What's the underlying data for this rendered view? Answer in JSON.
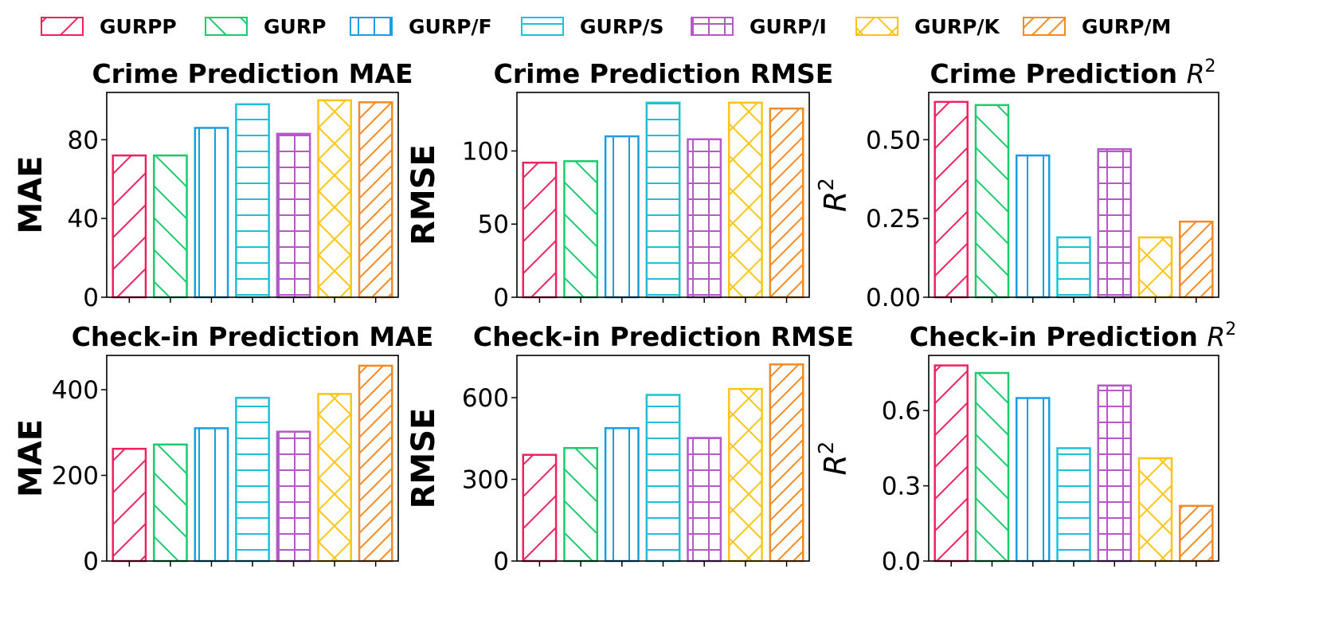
{
  "legend": [
    {
      "label": "GURPP",
      "color": "#f0215e",
      "hatch": "diag-forward"
    },
    {
      "label": "GURP",
      "color": "#1ccb6d",
      "hatch": "diag-back"
    },
    {
      "label": "GURP/F",
      "color": "#1a9ee0",
      "hatch": "vertical"
    },
    {
      "label": "GURP/S",
      "color": "#1ec0d8",
      "hatch": "horizontal"
    },
    {
      "label": "GURP/I",
      "color": "#b559c9",
      "hatch": "grid"
    },
    {
      "label": "GURP/K",
      "color": "#fcc417",
      "hatch": "cross-diag"
    },
    {
      "label": "GURP/M",
      "color": "#f28a26",
      "hatch": "diag-forward-dense"
    }
  ],
  "chart_data": [
    {
      "type": "bar",
      "title": "Crime Prediction MAE",
      "ylabel": "MAE",
      "categories": [
        "GURPP",
        "GURP",
        "GURP/F",
        "GURP/S",
        "GURP/I",
        "GURP/K",
        "GURP/M"
      ],
      "values": [
        72,
        72,
        86,
        98,
        83,
        100,
        99
      ],
      "ylim": [
        0,
        104
      ],
      "yticks": [
        0,
        40,
        80
      ],
      "ytick_labels": [
        "0",
        "40",
        "80"
      ]
    },
    {
      "type": "bar",
      "title": "Crime Prediction RMSE",
      "ylabel": "RMSE",
      "categories": [
        "GURPP",
        "GURP",
        "GURP/F",
        "GURP/S",
        "GURP/I",
        "GURP/K",
        "GURP/M"
      ],
      "values": [
        92,
        93,
        110,
        133,
        108,
        133,
        129
      ],
      "ylim": [
        0,
        140
      ],
      "yticks": [
        0,
        50,
        100
      ],
      "ytick_labels": [
        "0",
        "50",
        "100"
      ]
    },
    {
      "type": "bar",
      "title": "Crime Prediction R^2",
      "ylabel": "R^2",
      "categories": [
        "GURPP",
        "GURP",
        "GURP/F",
        "GURP/S",
        "GURP/I",
        "GURP/K",
        "GURP/M"
      ],
      "values": [
        0.62,
        0.61,
        0.45,
        0.19,
        0.47,
        0.19,
        0.24
      ],
      "ylim": [
        0,
        0.65
      ],
      "yticks": [
        0,
        0.25,
        0.5
      ],
      "ytick_labels": [
        "0.00",
        "0.25",
        "0.50"
      ]
    },
    {
      "type": "bar",
      "title": "Check-in Prediction MAE",
      "ylabel": "MAE",
      "categories": [
        "GURPP",
        "GURP",
        "GURP/F",
        "GURP/S",
        "GURP/I",
        "GURP/K",
        "GURP/M"
      ],
      "values": [
        262,
        272,
        310,
        381,
        302,
        390,
        456
      ],
      "ylim": [
        0,
        480
      ],
      "yticks": [
        0,
        200,
        400
      ],
      "ytick_labels": [
        "0",
        "200",
        "400"
      ]
    },
    {
      "type": "bar",
      "title": "Check-in Prediction RMSE",
      "ylabel": "RMSE",
      "categories": [
        "GURPP",
        "GURP",
        "GURP/F",
        "GURP/S",
        "GURP/I",
        "GURP/K",
        "GURP/M"
      ],
      "values": [
        390,
        415,
        488,
        610,
        452,
        632,
        722
      ],
      "ylim": [
        0,
        755
      ],
      "yticks": [
        0,
        300,
        600
      ],
      "ytick_labels": [
        "0",
        "300",
        "600"
      ]
    },
    {
      "type": "bar",
      "title": "Check-in Prediction R^2",
      "ylabel": "R^2",
      "categories": [
        "GURPP",
        "GURP",
        "GURP/F",
        "GURP/S",
        "GURP/I",
        "GURP/K",
        "GURP/M"
      ],
      "values": [
        0.78,
        0.75,
        0.65,
        0.45,
        0.7,
        0.41,
        0.22
      ],
      "ylim": [
        0,
        0.82
      ],
      "yticks": [
        0,
        0.3,
        0.6
      ],
      "ytick_labels": [
        "0.0",
        "0.3",
        "0.6"
      ]
    }
  ]
}
